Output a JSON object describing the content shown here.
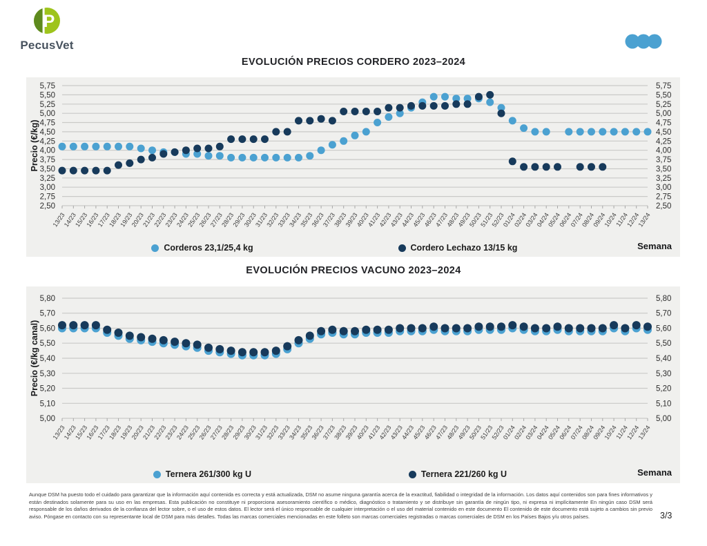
{
  "header": {
    "brand": "PecusVet",
    "logo": {
      "letter": "P",
      "dark_green": "#5E8A1E",
      "light_green": "#9EC41C"
    },
    "menu_dots_color": "#4BA1D1"
  },
  "chart_data": [
    {
      "type": "scatter",
      "title": "EVOLUCIÓN PRECIOS CORDERO 2023–2024",
      "ylabel": "Precio (€/kg)",
      "xlabel": "Semana",
      "ylim": [
        2.5,
        5.75
      ],
      "ytick_step": 0.25,
      "grid": true,
      "legend_position": "bottom",
      "categories": [
        "13/23",
        "14/23",
        "15/23",
        "16/23",
        "17/23",
        "18/23",
        "19/23",
        "20/23",
        "21/23",
        "22/23",
        "23/23",
        "24/23",
        "25/23",
        "26/23",
        "27/23",
        "28/23",
        "29/23",
        "30/23",
        "31/23",
        "32/23",
        "33/23",
        "34/23",
        "35/23",
        "36/23",
        "37/23",
        "38/23",
        "39/23",
        "40/23",
        "41/23",
        "42/23",
        "43/23",
        "44/23",
        "45/23",
        "46/23",
        "47/23",
        "48/23",
        "49/23",
        "50/23",
        "51/23",
        "52/23",
        "01/24",
        "02/24",
        "03/24",
        "04/24",
        "05/24",
        "06/24",
        "07/24",
        "08/24",
        "09/24",
        "10/24",
        "11/24",
        "12/24",
        "13/24"
      ],
      "series": [
        {
          "name": "Corderos 23,1/25,4 kg",
          "color": "#4BA1D1",
          "values": [
            4.1,
            4.1,
            4.1,
            4.1,
            4.1,
            4.1,
            4.1,
            4.05,
            4.0,
            3.95,
            3.95,
            3.9,
            3.9,
            3.85,
            3.85,
            3.8,
            3.8,
            3.8,
            3.8,
            3.8,
            3.8,
            3.8,
            3.85,
            4.0,
            4.15,
            4.25,
            4.4,
            4.5,
            4.75,
            4.9,
            5.0,
            5.15,
            5.3,
            5.45,
            5.45,
            5.4,
            5.4,
            5.4,
            5.3,
            5.15,
            4.8,
            4.6,
            4.5,
            4.5,
            null,
            4.5,
            4.5,
            4.5,
            4.5,
            4.5,
            4.5,
            4.5,
            4.5
          ]
        },
        {
          "name": "Cordero Lechazo 13/15 kg",
          "color": "#173A5B",
          "values": [
            3.45,
            3.45,
            3.45,
            3.45,
            3.45,
            3.6,
            3.65,
            3.75,
            3.8,
            3.9,
            3.95,
            4.0,
            4.05,
            4.05,
            4.1,
            4.3,
            4.3,
            4.3,
            4.3,
            4.5,
            4.5,
            4.8,
            4.8,
            4.85,
            4.8,
            5.05,
            5.05,
            5.05,
            5.05,
            5.15,
            5.15,
            5.2,
            5.2,
            5.2,
            5.2,
            5.25,
            5.25,
            5.45,
            5.5,
            5.0,
            3.7,
            3.55,
            3.55,
            3.55,
            3.55,
            null,
            3.55,
            3.55,
            3.55,
            null,
            null,
            null,
            null
          ]
        }
      ]
    },
    {
      "type": "scatter",
      "title": "EVOLUCIÓN PRECIOS VACUNO 2023–2024",
      "ylabel": "Precio (€/kg canal)",
      "xlabel": "Semana",
      "ylim": [
        5.0,
        5.8
      ],
      "ytick_step": 0.1,
      "grid": true,
      "legend_position": "bottom",
      "categories": [
        "13/23",
        "14/23",
        "15/23",
        "16/23",
        "17/23",
        "18/23",
        "19/23",
        "20/23",
        "21/23",
        "22/23",
        "23/23",
        "24/23",
        "25/23",
        "26/23",
        "27/23",
        "28/23",
        "29/23",
        "30/23",
        "31/23",
        "32/23",
        "33/23",
        "34/23",
        "35/23",
        "36/23",
        "37/23",
        "38/23",
        "39/23",
        "40/23",
        "41/23",
        "42/23",
        "43/23",
        "44/23",
        "45/23",
        "46/23",
        "47/23",
        "48/23",
        "49/23",
        "50/23",
        "51/23",
        "52/23",
        "01/24",
        "02/24",
        "03/24",
        "04/24",
        "05/24",
        "06/24",
        "07/24",
        "08/24",
        "09/24",
        "10/24",
        "11/24",
        "12/24",
        "13/24"
      ],
      "series": [
        {
          "name": "Ternera 261/300 kg U",
          "color": "#4BA1D1",
          "values": [
            5.6,
            5.6,
            5.6,
            5.6,
            5.57,
            5.55,
            5.53,
            5.52,
            5.51,
            5.5,
            5.49,
            5.48,
            5.47,
            5.45,
            5.44,
            5.43,
            5.42,
            5.42,
            5.42,
            5.43,
            5.46,
            5.5,
            5.53,
            5.56,
            5.57,
            5.56,
            5.56,
            5.57,
            5.57,
            5.57,
            5.58,
            5.58,
            5.58,
            5.59,
            5.58,
            5.58,
            5.58,
            5.59,
            5.59,
            5.59,
            5.6,
            5.59,
            5.58,
            5.58,
            5.59,
            5.58,
            5.58,
            5.58,
            5.58,
            5.6,
            5.58,
            5.6,
            5.59
          ]
        },
        {
          "name": "Ternera 221/260 kg U",
          "color": "#173A5B",
          "values": [
            5.62,
            5.62,
            5.62,
            5.62,
            5.59,
            5.57,
            5.55,
            5.54,
            5.53,
            5.52,
            5.51,
            5.5,
            5.49,
            5.47,
            5.46,
            5.45,
            5.44,
            5.44,
            5.44,
            5.45,
            5.48,
            5.52,
            5.55,
            5.58,
            5.59,
            5.58,
            5.58,
            5.59,
            5.59,
            5.59,
            5.6,
            5.6,
            5.6,
            5.61,
            5.6,
            5.6,
            5.6,
            5.61,
            5.61,
            5.61,
            5.62,
            5.61,
            5.6,
            5.6,
            5.61,
            5.6,
            5.6,
            5.6,
            5.6,
            5.62,
            5.6,
            5.62,
            5.61
          ]
        }
      ]
    }
  ],
  "footer": {
    "disclaimer": "Aunque DSM ha puesto todo el cuidado para garantizar que la información aquí contenida es correcta y está actualizada, DSM no asume ninguna garantía acerca de la exactitud, fiabilidad o integridad de la información. Los datos aquí contenidos son para fines informativos y están destinados solamente para su uso en las empresas. Esta publicación no constituye ni proporciona asesoramiento científico o médico, diagnóstico o tratamiento y se distribuye sin garantía de ningún tipo, ni expresa ni implícitamente En ningún caso DSM será responsable de los daños derivados de la confianza del lector sobre, o el uso de estos datos. El lector será el único responsable de cualquier interpretación o el uso del material contenido en este documento El contenido de este documento está sujeto a cambios sin previo aviso. Póngase en contacto con su representante local de DSM para más detalles. Todas las marcas comerciales mencionadas en este folleto son marcas comerciales registradas o marcas comerciales de DSM en los Países Bajos y/u otros países.",
    "page": "3/3"
  }
}
